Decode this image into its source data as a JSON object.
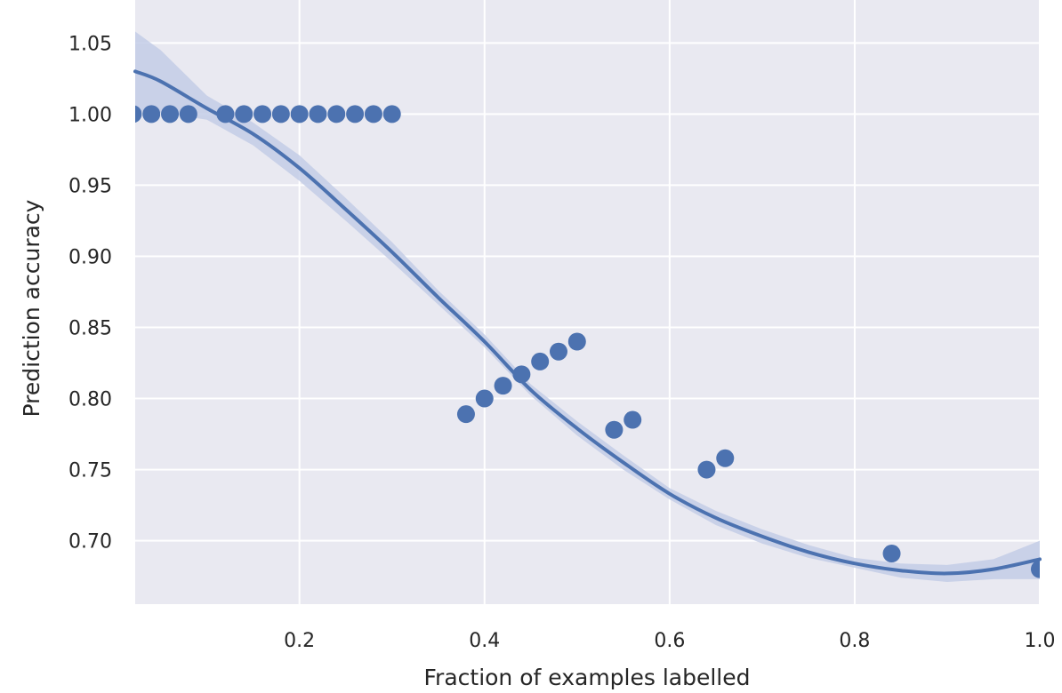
{
  "chart_data": {
    "type": "scatter",
    "title": "",
    "xlabel": "Fraction of examples labelled",
    "ylabel": "Prediction accuracy",
    "xlim": [
      0.0225,
      1.0
    ],
    "ylim": [
      0.6554,
      1.0802
    ],
    "grid": true,
    "legend": "none",
    "x_ticks": [
      0.2,
      0.4,
      0.6,
      0.8,
      1.0
    ],
    "x_tick_labels": [
      "0.2",
      "0.4",
      "0.6",
      "0.8",
      "1.0"
    ],
    "y_ticks": [
      0.7,
      0.75,
      0.8,
      0.85,
      0.9,
      0.95,
      1.0,
      1.05
    ],
    "y_tick_labels": [
      "0.70",
      "0.75",
      "0.80",
      "0.85",
      "0.90",
      "0.95",
      "1.00",
      "1.05"
    ],
    "series": [
      {
        "kind": "points",
        "points": [
          {
            "x": 0.02,
            "y": 1.0
          },
          {
            "x": 0.04,
            "y": 1.0
          },
          {
            "x": 0.06,
            "y": 1.0
          },
          {
            "x": 0.08,
            "y": 1.0
          },
          {
            "x": 0.12,
            "y": 1.0
          },
          {
            "x": 0.14,
            "y": 1.0
          },
          {
            "x": 0.16,
            "y": 1.0
          },
          {
            "x": 0.18,
            "y": 1.0
          },
          {
            "x": 0.2,
            "y": 1.0
          },
          {
            "x": 0.22,
            "y": 1.0
          },
          {
            "x": 0.24,
            "y": 1.0
          },
          {
            "x": 0.26,
            "y": 1.0
          },
          {
            "x": 0.28,
            "y": 1.0
          },
          {
            "x": 0.3,
            "y": 1.0
          },
          {
            "x": 0.38,
            "y": 0.789
          },
          {
            "x": 0.4,
            "y": 0.8
          },
          {
            "x": 0.42,
            "y": 0.809
          },
          {
            "x": 0.44,
            "y": 0.817
          },
          {
            "x": 0.46,
            "y": 0.826
          },
          {
            "x": 0.48,
            "y": 0.833
          },
          {
            "x": 0.5,
            "y": 0.84
          },
          {
            "x": 0.54,
            "y": 0.778
          },
          {
            "x": 0.56,
            "y": 0.785
          },
          {
            "x": 0.64,
            "y": 0.75
          },
          {
            "x": 0.66,
            "y": 0.758
          },
          {
            "x": 0.84,
            "y": 0.691
          },
          {
            "x": 1.0,
            "y": 0.68
          }
        ]
      },
      {
        "kind": "fit",
        "x": [
          0.0225,
          0.05,
          0.1,
          0.15,
          0.2,
          0.25,
          0.3,
          0.35,
          0.4,
          0.45,
          0.5,
          0.55,
          0.6,
          0.65,
          0.7,
          0.75,
          0.8,
          0.85,
          0.9,
          0.95,
          1.0
        ],
        "y": [
          1.03,
          1.023,
          1.004,
          0.986,
          0.962,
          0.933,
          0.903,
          0.871,
          0.84,
          0.806,
          0.779,
          0.755,
          0.733,
          0.716,
          0.703,
          0.692,
          0.684,
          0.679,
          0.677,
          0.68,
          0.687
        ],
        "ci_lower": [
          1.002,
          1.001,
          0.996,
          0.978,
          0.953,
          0.925,
          0.896,
          0.866,
          0.836,
          0.802,
          0.774,
          0.75,
          0.729,
          0.711,
          0.698,
          0.688,
          0.681,
          0.674,
          0.671,
          0.673,
          0.673
        ],
        "ci_upper": [
          1.058,
          1.045,
          1.013,
          0.994,
          0.971,
          0.941,
          0.91,
          0.876,
          0.845,
          0.81,
          0.784,
          0.76,
          0.737,
          0.721,
          0.708,
          0.697,
          0.688,
          0.684,
          0.683,
          0.687,
          0.7
        ]
      }
    ],
    "colors": {
      "plot_background": "#e9e9f1",
      "grid": "#ffffff",
      "series": "#4c72b0",
      "confidence_band": "#c3cde6",
      "text": "#262626"
    }
  }
}
